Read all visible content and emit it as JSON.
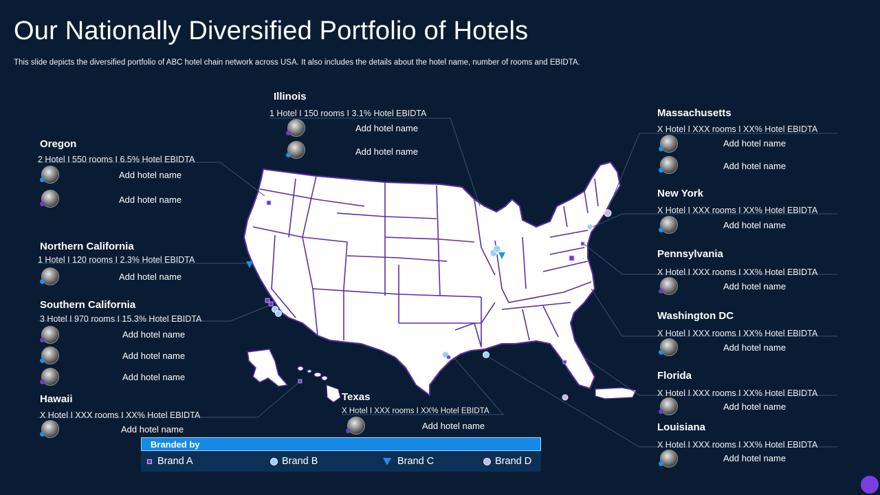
{
  "title": "Our Nationally Diversified Portfolio of Hotels",
  "subtitle": "This slide depicts the diversified portfolio of ABC hotel chain network across USA. It also includes the details about the hotel name, number of rooms and EBIDTA.",
  "hotel_label": "Add hotel name",
  "regions": {
    "illinois": {
      "name": "Illinois",
      "stats": "1 Hotel I 150 rooms I 3.1% Hotel EBIDTA"
    },
    "oregon": {
      "name": "Oregon",
      "stats": "2 Hotel I 550 rooms I 6.5% Hotel EBIDTA"
    },
    "ncal": {
      "name": "Northern California",
      "stats": "1 Hotel I 120 rooms I 2.3% Hotel EBIDTA"
    },
    "scal": {
      "name": "Southern California",
      "stats": "3 Hotel I 970 rooms I 15.3% Hotel EBIDTA"
    },
    "hawaii": {
      "name": "Hawaii",
      "stats": "X Hotel I XXX  rooms I XX%  Hotel EBIDTA"
    },
    "texas": {
      "name": "Texas",
      "stats": "X Hotel I XXX  rooms I XX%  Hotel EBIDTA"
    },
    "massachusetts": {
      "name": "Massachusetts",
      "stats": "X Hotel I XXX  rooms I XX%  Hotel EBIDTA"
    },
    "newyork": {
      "name": "New York",
      "stats": "X Hotel I XXX  rooms I XX%  Hotel EBIDTA"
    },
    "pennsylvania": {
      "name": "Pennsylvania",
      "stats": "X Hotel I XXX  rooms I XX%  Hotel EBIDTA"
    },
    "washingtondc": {
      "name": "Washington DC",
      "stats": "X Hotel I XXX  rooms I XX%  Hotel EBIDTA"
    },
    "florida": {
      "name": "Florida",
      "stats": "X Hotel I XXX  rooms I XX%  Hotel EBIDTA"
    },
    "louisiana": {
      "name": "Louisiana",
      "stats": "X Hotel I XXX  rooms I XX%  Hotel EBIDTA"
    }
  },
  "legend": {
    "header": "Branded by",
    "items": [
      "Brand A",
      "Brand B",
      "Brand C",
      "Brand D"
    ]
  },
  "colors": {
    "background": "#0a1c33",
    "brand_a": "#6a3fbf",
    "brand_b": "#9ed0f5",
    "brand_c": "#1f8fe0",
    "brand_d": "#c8b6e6",
    "map_fill": "#ffffff",
    "map_border": "#5a2ea6",
    "legend_header": "#1689e6"
  }
}
